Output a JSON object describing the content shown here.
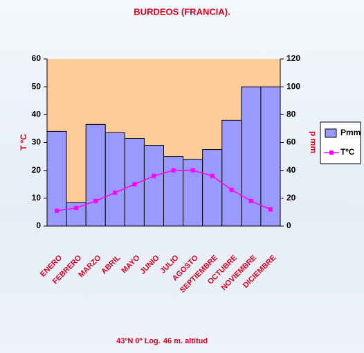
{
  "chart_data": {
    "type": "climograph",
    "title": "BURDEOS (FRANCIA).",
    "categories": [
      "ENERO",
      "FEBRERO",
      "MARZO",
      "ABRIL",
      "MAYO",
      "JUNIO",
      "JULIO",
      "AGOSTO",
      "SEPTIEMBRE",
      "OCTUBRE",
      "NOVIEMBRE",
      "DICIEMBRE"
    ],
    "series": [
      {
        "name": "Pmm",
        "type": "bar",
        "axis": "y2",
        "color": "#9999ff",
        "values": [
          68,
          17,
          73,
          67,
          63,
          58,
          50,
          48,
          55,
          76,
          100,
          100
        ]
      },
      {
        "name": "TºC",
        "type": "line",
        "axis": "y",
        "color": "#ff00ff",
        "values": [
          5.5,
          6.5,
          9,
          12,
          15,
          18,
          20,
          20,
          18,
          13,
          9,
          6
        ]
      }
    ],
    "ylabel": "T ºC",
    "y2label": "p mm",
    "ylim": [
      0,
      60
    ],
    "yticks": [
      0,
      10,
      20,
      30,
      40,
      50,
      60
    ],
    "y2lim": [
      0,
      120
    ],
    "y2ticks": [
      0,
      20,
      40,
      60,
      80,
      100,
      120
    ],
    "plot_color": "#ffcc99",
    "legend": "right",
    "footer": [
      "43ºN 0º Log.",
      "46 m. altitud"
    ]
  }
}
